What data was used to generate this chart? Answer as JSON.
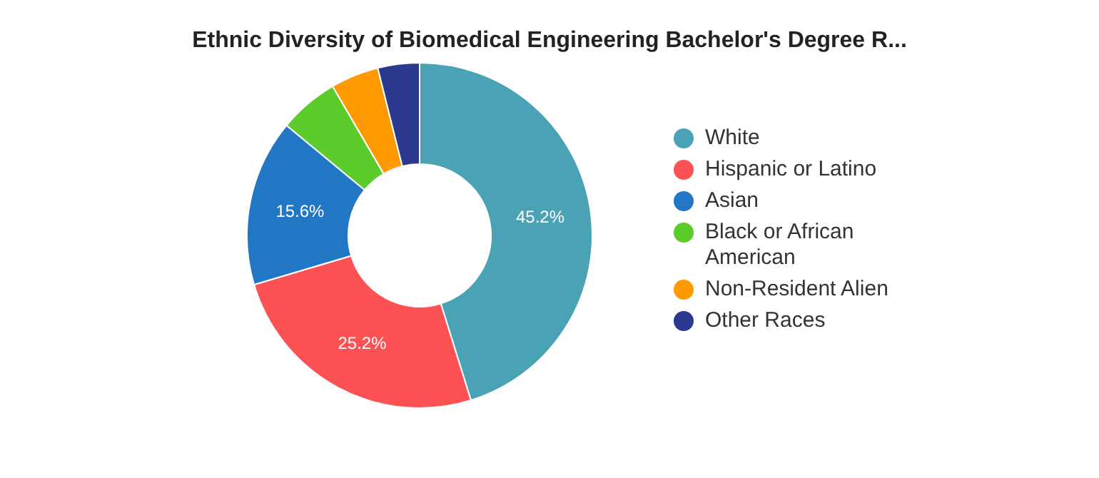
{
  "chart_data": {
    "type": "donut",
    "title": "Ethnic Diversity of Biomedical Engineering Bachelor's Degree R...",
    "categories": [
      "White",
      "Hispanic or Latino",
      "Asian",
      "Black or African American",
      "Non-Resident Alien",
      "Other Races"
    ],
    "values": [
      45.2,
      25.2,
      15.6,
      5.6,
      4.5,
      3.9
    ],
    "colors": [
      "#4aa3b5",
      "#fc5254",
      "#2277c5",
      "#5ccc2c",
      "#ff9a00",
      "#2b3a8f"
    ],
    "value_labels": [
      "45.2%",
      "25.2%",
      "15.6%",
      null,
      null,
      null
    ],
    "legend": "right"
  }
}
